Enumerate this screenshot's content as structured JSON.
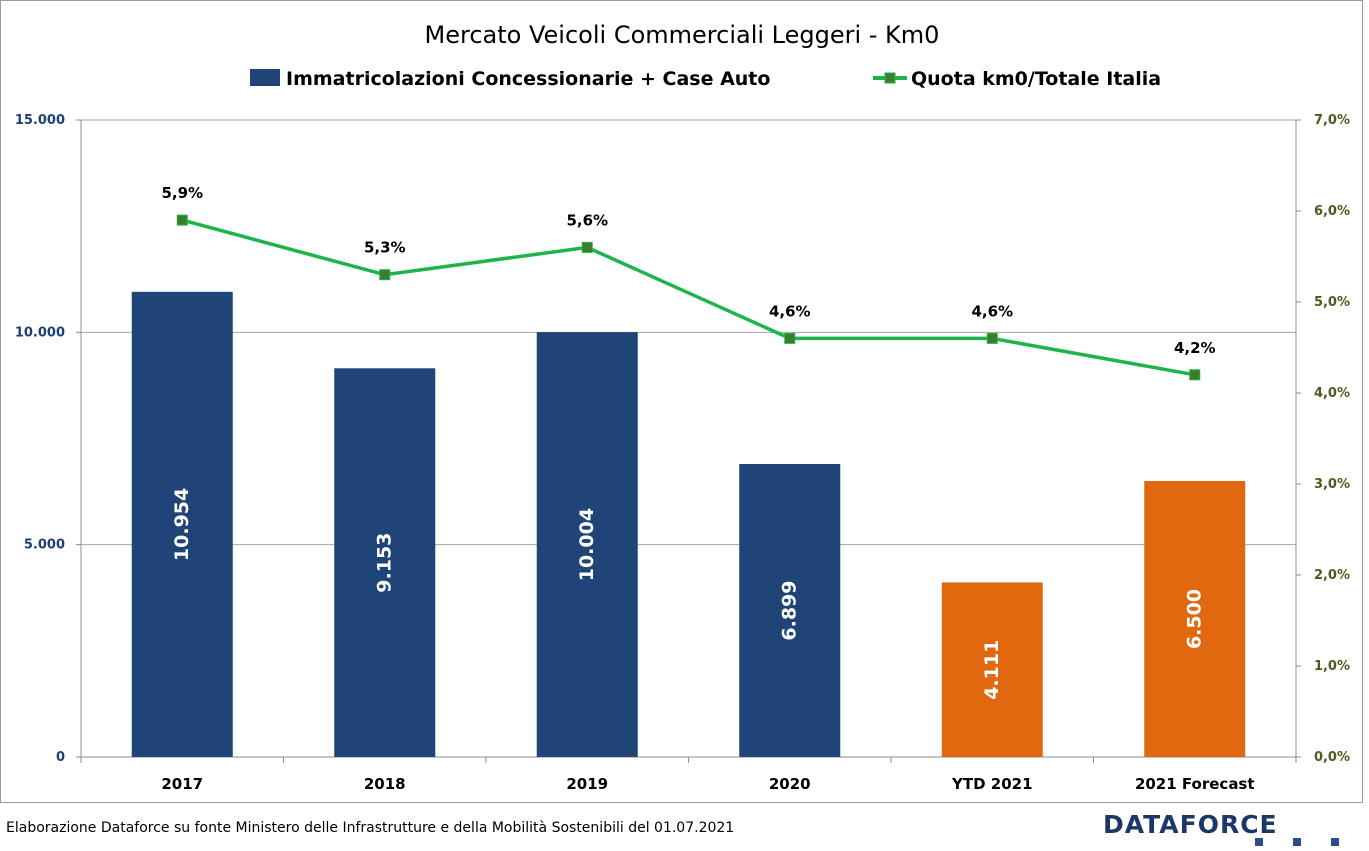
{
  "chart_data": {
    "type": "bar",
    "title": "Mercato Veicoli Commerciali Leggeri - Km0",
    "categories": [
      "2017",
      "2018",
      "2019",
      "2020",
      "YTD 2021",
      "2021 Forecast"
    ],
    "series": [
      {
        "name": "Immatricolazioni Concessionarie + Case Auto",
        "type": "bar",
        "axis": "left",
        "values": [
          10954,
          9153,
          10004,
          6899,
          4111,
          6500
        ],
        "labels": [
          "10.954",
          "9.153",
          "10.004",
          "6.899",
          "4.111",
          "6.500"
        ],
        "colors": [
          "#1f4477",
          "#1f4477",
          "#1f4477",
          "#1f4477",
          "#e2680f",
          "#e2680f"
        ]
      },
      {
        "name": "Quota km0/Totale Italia",
        "type": "line",
        "axis": "right",
        "values": [
          5.9,
          5.3,
          5.6,
          4.6,
          4.6,
          4.2
        ],
        "labels": [
          "5,9%",
          "5,3%",
          "5,6%",
          "4,6%",
          "4,6%",
          "4,2%"
        ],
        "color": "#1fb44a",
        "marker_color": "#3a7d2a"
      }
    ],
    "y_left": {
      "ylim": [
        0,
        15000
      ],
      "ticks": [
        0,
        5000,
        10000,
        15000
      ],
      "tick_labels": [
        "0",
        "5.000",
        "10.000",
        "15.000"
      ]
    },
    "y_right": {
      "ylim": [
        0,
        7
      ],
      "ticks": [
        0,
        1,
        2,
        3,
        4,
        5,
        6,
        7
      ],
      "tick_labels": [
        "0,0%",
        "1,0%",
        "2,0%",
        "3,0%",
        "4,0%",
        "5,0%",
        "6,0%",
        "7,0%"
      ]
    },
    "grid": true,
    "legend": "top"
  },
  "footer": {
    "source": "Elaborazione Dataforce su fonte Ministero delle Infrastrutture e della Mobilità Sostenibili del 01.07.2021",
    "brand": "DATAFORCE"
  }
}
